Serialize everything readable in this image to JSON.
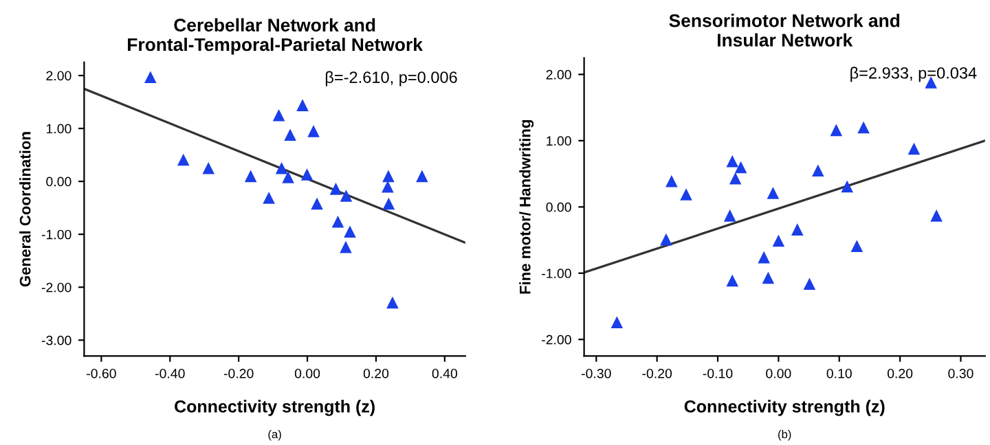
{
  "chart_data": [
    {
      "type": "scatter",
      "title": "Cerebellar Network and\nFrontal-Temporal-Parietal Network",
      "xlabel": "Connectivity strength (z)",
      "ylabel": "General Coordination",
      "annotations": [
        "β=-2.610, p=0.006",
        "(a)"
      ],
      "grid": false,
      "xlim": [
        -0.65,
        0.46
      ],
      "xticks": [
        {
          "value": -0.6,
          "label": "-0.60"
        },
        {
          "value": -0.4,
          "label": "-0.40"
        },
        {
          "value": -0.2,
          "label": "-0.20"
        },
        {
          "value": 0,
          "label": "0.00"
        },
        {
          "value": 0.2,
          "label": "0.20"
        },
        {
          "value": 0.4,
          "label": "0.40"
        }
      ],
      "ylim": [
        -3.3,
        2.25
      ],
      "yticks": [
        {
          "value": -3,
          "label": "-3.00"
        },
        {
          "value": -2,
          "label": "-2.00"
        },
        {
          "value": -1,
          "label": "-1.00"
        },
        {
          "value": 0,
          "label": "0.00"
        },
        {
          "value": 1,
          "label": "1.00"
        },
        {
          "value": 2,
          "label": "2.00"
        }
      ],
      "series": [
        {
          "marker": "triangle",
          "color": "#1a3ee8",
          "x": [
            -0.457,
            -0.361,
            -0.288,
            -0.165,
            -0.112,
            -0.083,
            -0.075,
            -0.056,
            -0.05,
            -0.014,
            -0.001,
            0.018,
            0.028,
            0.083,
            0.089,
            0.113,
            0.112,
            0.124,
            0.236,
            0.234,
            0.237,
            0.248,
            0.334
          ],
          "values": [
            1.97,
            0.41,
            0.25,
            0.1,
            -0.31,
            1.25,
            0.25,
            0.08,
            0.88,
            1.44,
            0.13,
            0.95,
            -0.42,
            -0.14,
            -0.76,
            -0.27,
            -1.24,
            -0.95,
            0.1,
            -0.1,
            -0.42,
            -2.29,
            0.1
          ]
        },
        {
          "type": "line",
          "marker": "none",
          "color": "#333333",
          "x": [
            -0.65,
            0.46
          ],
          "values": [
            1.75,
            -1.16
          ]
        }
      ]
    },
    {
      "type": "scatter",
      "title": "Sensorimotor Network and\nInsular Network",
      "xlabel": "Connectivity strength (z)",
      "ylabel": "Fine motor/ Handwriting",
      "annotations": [
        "β=2.933, p=0.034",
        "(b)"
      ],
      "grid": false,
      "xlim": [
        -0.32,
        0.34
      ],
      "xticks": [
        {
          "value": -0.3,
          "label": "-0.30"
        },
        {
          "value": -0.2,
          "label": "-0.20"
        },
        {
          "value": -0.1,
          "label": "-0.10"
        },
        {
          "value": 0,
          "label": "0.00"
        },
        {
          "value": 0.1,
          "label": "0.10"
        },
        {
          "value": 0.2,
          "label": "0.20"
        },
        {
          "value": 0.3,
          "label": "0.30"
        }
      ],
      "ylim": [
        -2.25,
        2.25
      ],
      "yticks": [
        {
          "value": -2,
          "label": "-2.00"
        },
        {
          "value": -1,
          "label": "-1.00"
        },
        {
          "value": 0,
          "label": "0.00"
        },
        {
          "value": 1,
          "label": "1.00"
        },
        {
          "value": 2,
          "label": "2.00"
        }
      ],
      "series": [
        {
          "marker": "triangle",
          "color": "#1a3ee8",
          "x": [
            -0.266,
            -0.185,
            -0.176,
            -0.152,
            -0.08,
            -0.076,
            -0.071,
            -0.062,
            -0.076,
            -0.024,
            -0.017,
            -0.009,
            0.0,
            0.031,
            0.051,
            0.065,
            0.095,
            0.113,
            0.129,
            0.14,
            0.223,
            0.251,
            0.26
          ],
          "values": [
            -1.74,
            -0.49,
            0.39,
            0.19,
            -0.13,
            0.69,
            0.43,
            0.6,
            -1.11,
            -0.76,
            -1.07,
            0.21,
            -0.51,
            -0.34,
            -1.16,
            0.55,
            1.16,
            0.31,
            -0.59,
            1.2,
            0.88,
            1.88,
            -0.13
          ]
        },
        {
          "type": "line",
          "marker": "none",
          "color": "#333333",
          "x": [
            -0.32,
            0.34
          ],
          "values": [
            -0.99,
            1.0
          ]
        }
      ]
    }
  ]
}
